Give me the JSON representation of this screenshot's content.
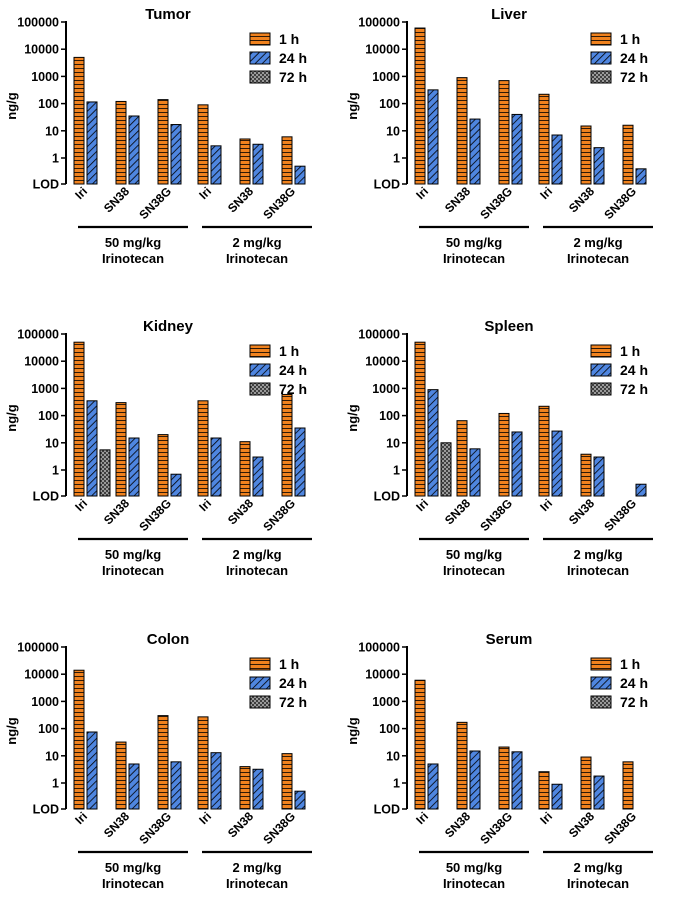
{
  "legend": {
    "labels": [
      "1 h",
      "24 h",
      "72 h"
    ]
  },
  "colors": {
    "h1": "#F0821E",
    "h24": "#4F86E0",
    "h72": "#8C8C8C",
    "stroke": "#000000"
  },
  "ylabel": "ng/g",
  "y_ticks": [
    "100000",
    "10000",
    "1000",
    "100",
    "10",
    "1",
    "LOD"
  ],
  "categories": [
    "Iri",
    "SN38",
    "SN38G",
    "Iri",
    "SN38",
    "SN38G"
  ],
  "groups": [
    {
      "line1": "50 mg/kg",
      "line2": "Irinotecan"
    },
    {
      "line1": "2 mg/kg",
      "line2": "Irinotecan"
    }
  ],
  "chart_data": [
    {
      "type": "bar",
      "title": "Tumor",
      "ylabel": "ng/g",
      "yscale": "log",
      "ylim": [
        0.1,
        100000
      ],
      "series": [
        {
          "name": "1 h",
          "values": [
            5000,
            120,
            140,
            90,
            5,
            6
          ]
        },
        {
          "name": "24 h",
          "values": [
            115,
            35,
            17,
            2.8,
            3.2,
            0.5
          ]
        },
        {
          "name": "72 h",
          "values": [
            null,
            null,
            null,
            null,
            null,
            null
          ]
        }
      ]
    },
    {
      "type": "bar",
      "title": "Liver",
      "ylabel": "ng/g",
      "yscale": "log",
      "ylim": [
        0.1,
        100000
      ],
      "series": [
        {
          "name": "1 h",
          "values": [
            60000,
            900,
            700,
            220,
            15,
            16
          ]
        },
        {
          "name": "24 h",
          "values": [
            320,
            27,
            40,
            7,
            2.4,
            0.4
          ]
        },
        {
          "name": "72 h",
          "values": [
            null,
            null,
            null,
            null,
            null,
            null
          ]
        }
      ]
    },
    {
      "type": "bar",
      "title": "Kidney",
      "ylabel": "ng/g",
      "yscale": "log",
      "ylim": [
        0.1,
        100000
      ],
      "series": [
        {
          "name": "1 h",
          "values": [
            50000,
            300,
            20,
            350,
            11,
            600
          ]
        },
        {
          "name": "24 h",
          "values": [
            350,
            15,
            0.7,
            15,
            3,
            35
          ]
        },
        {
          "name": "72 h",
          "values": [
            5.5,
            null,
            null,
            null,
            null,
            null
          ]
        }
      ]
    },
    {
      "type": "bar",
      "title": "Spleen",
      "ylabel": "ng/g",
      "yscale": "log",
      "ylim": [
        0.1,
        100000
      ],
      "series": [
        {
          "name": "1 h",
          "values": [
            50000,
            65,
            120,
            220,
            3.8,
            null
          ]
        },
        {
          "name": "24 h",
          "values": [
            900,
            6,
            25,
            27,
            3,
            0.3
          ]
        },
        {
          "name": "72 h",
          "values": [
            10,
            null,
            null,
            null,
            null,
            null
          ]
        }
      ]
    },
    {
      "type": "bar",
      "title": "Colon",
      "ylabel": "ng/g",
      "yscale": "log",
      "ylim": [
        0.1,
        100000
      ],
      "series": [
        {
          "name": "1 h",
          "values": [
            14000,
            32,
            300,
            270,
            4,
            12
          ]
        },
        {
          "name": "24 h",
          "values": [
            75,
            5,
            6,
            13,
            3.2,
            0.5
          ]
        },
        {
          "name": "72 h",
          "values": [
            null,
            null,
            null,
            null,
            null,
            null
          ]
        }
      ]
    },
    {
      "type": "bar",
      "title": "Serum",
      "ylabel": "ng/g",
      "yscale": "log",
      "ylim": [
        0.1,
        100000
      ],
      "series": [
        {
          "name": "1 h",
          "values": [
            6000,
            170,
            21,
            2.6,
            9,
            6
          ]
        },
        {
          "name": "24 h",
          "values": [
            5,
            15,
            14,
            0.9,
            1.8,
            null
          ]
        },
        {
          "name": "72 h",
          "values": [
            null,
            null,
            null,
            null,
            null,
            null
          ]
        }
      ]
    }
  ]
}
